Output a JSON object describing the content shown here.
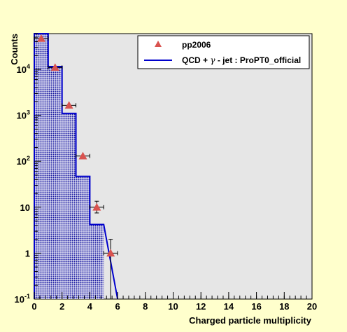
{
  "chart_data": {
    "type": "histogram",
    "xlabel": "Charged particle multiplicity",
    "ylabel": "Counts",
    "xlim": [
      0,
      20
    ],
    "ylim": [
      0.1,
      60000
    ],
    "yscale": "log",
    "xticks": [
      0,
      2,
      4,
      6,
      8,
      10,
      12,
      14,
      16,
      18,
      20
    ],
    "yticks": [
      {
        "value": 0.1,
        "base": "10",
        "exp": "-1"
      },
      {
        "value": 1,
        "base": "1",
        "exp": ""
      },
      {
        "value": 10,
        "base": "10",
        "exp": ""
      },
      {
        "value": 100,
        "base": "10",
        "exp": "2"
      },
      {
        "value": 1000,
        "base": "10",
        "exp": "3"
      },
      {
        "value": 10000,
        "base": "10",
        "exp": "4"
      }
    ],
    "grid": false,
    "legend_position": "top-right",
    "series": [
      {
        "name": "pp2006",
        "kind": "points",
        "marker": "triangle",
        "color": "#d9534f",
        "x": [
          0.5,
          1.5,
          2.5,
          3.5,
          4.5,
          5.5
        ],
        "y": [
          47000,
          11000,
          1650,
          130,
          10,
          1
        ],
        "xerr": 0.5,
        "yerr_low": [
          0,
          0,
          0,
          0,
          2.5,
          0.9
        ],
        "yerr_high": [
          0,
          0,
          0,
          0,
          3.5,
          1.0
        ]
      },
      {
        "name": "QCD + γ - jet : ProPT0_official",
        "kind": "step",
        "color": "#0000cc",
        "fill": "#1a1aa0",
        "bin_edges": [
          0,
          1,
          2,
          3,
          4,
          5
        ],
        "values": [
          60000,
          11500,
          1100,
          47,
          4.2
        ]
      }
    ]
  },
  "legend": {
    "entry1": "pp2006",
    "entry2_prefix": "QCD + ",
    "entry2_gamma": "γ",
    "entry2_suffix": " - jet : ProPT0_official"
  },
  "labels": {
    "xlabel": "Charged particle multiplicity",
    "ylabel": "Counts"
  },
  "colors": {
    "page_bg": "#ffffcc",
    "plot_bg": "#e6e6e6",
    "legend_bg": "#ffffff"
  }
}
